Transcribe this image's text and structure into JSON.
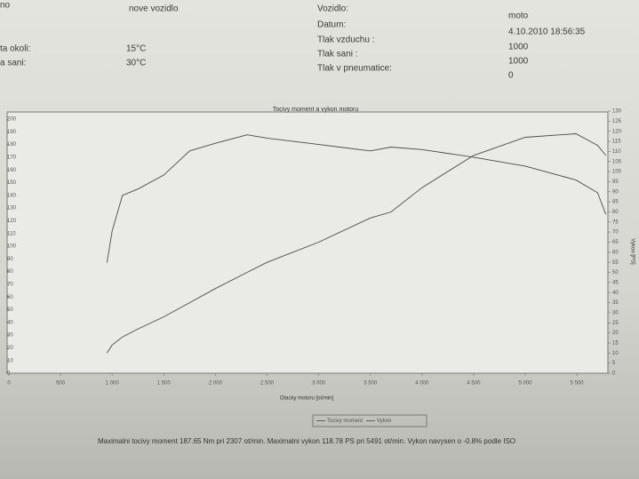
{
  "header": {
    "left": [
      [
        "no",
        ""
      ],
      [
        "",
        "nove vozidlo"
      ],
      [
        "ta okoli:",
        "15°C"
      ],
      [
        "a sani:",
        "30°C"
      ]
    ],
    "right": [
      [
        "Vozidlo:",
        "moto"
      ],
      [
        "Datum:",
        "4.10.2010 18:56:35"
      ],
      [
        "Tlak vzduchu :",
        "1000"
      ],
      [
        "Tlak sani :",
        "1000"
      ],
      [
        "Tlak v pneumatice:",
        "0"
      ]
    ]
  },
  "chart_data": {
    "type": "line",
    "title": "Tocivy moment a vykon motoru",
    "x_label": "Otacky motoru [ot/min]",
    "y2_label": "Vykon [PS]",
    "x": [
      950,
      1000,
      1100,
      1250,
      1500,
      1750,
      2000,
      2307,
      2500,
      3000,
      3500,
      3700,
      4000,
      4500,
      5000,
      5491,
      5700,
      5780
    ],
    "series": [
      {
        "name": "Tocivy moment",
        "color": "#4a4a4a",
        "values": [
          87,
          112,
          140,
          145,
          156,
          175,
          181,
          187.65,
          185,
          180,
          175,
          178,
          176,
          170,
          163,
          152,
          142,
          125
        ]
      },
      {
        "name": "Vykon",
        "color": "#4a4a4a",
        "axis": "y2",
        "values": [
          10,
          14,
          18,
          22,
          28,
          35,
          42,
          50,
          55,
          65,
          77,
          80,
          92,
          108,
          117,
          118.78,
          113,
          108
        ]
      }
    ],
    "xlim": [
      0,
      5800
    ],
    "xticks": [
      0,
      500,
      {
        "value": 1000,
        "label": "1 000"
      },
      {
        "value": 1500,
        "label": "1 500"
      },
      {
        "value": 2000,
        "label": "2 000"
      },
      {
        "value": 2500,
        "label": "2 500"
      },
      {
        "value": 3000,
        "label": "3 000"
      },
      {
        "value": 3500,
        "label": "3 500"
      },
      {
        "value": 4000,
        "label": "4 000"
      },
      {
        "value": 4500,
        "label": "4 500"
      },
      {
        "value": 5000,
        "label": "5 000"
      },
      {
        "value": 5500,
        "label": "5 500"
      }
    ],
    "ylim": [
      0,
      200
    ],
    "yticks": [
      0,
      10,
      20,
      30,
      40,
      50,
      60,
      70,
      80,
      90,
      100,
      110,
      120,
      130,
      140,
      150,
      160,
      170,
      180,
      190,
      200
    ],
    "y2lim": [
      0,
      130
    ],
    "y2ticks": [
      0,
      5,
      10,
      15,
      20,
      25,
      30,
      35,
      40,
      45,
      50,
      55,
      60,
      65,
      70,
      75,
      80,
      85,
      90,
      95,
      100,
      105,
      110,
      115,
      120,
      125,
      130
    ],
    "footer": "Maximalni tocivy moment 187.65 Nm pri 2307 ot/min.  Maximalni vykon 118.78 PS pri 5491 ot/min.  Vykon navysen o -0.8% podle ISO"
  }
}
